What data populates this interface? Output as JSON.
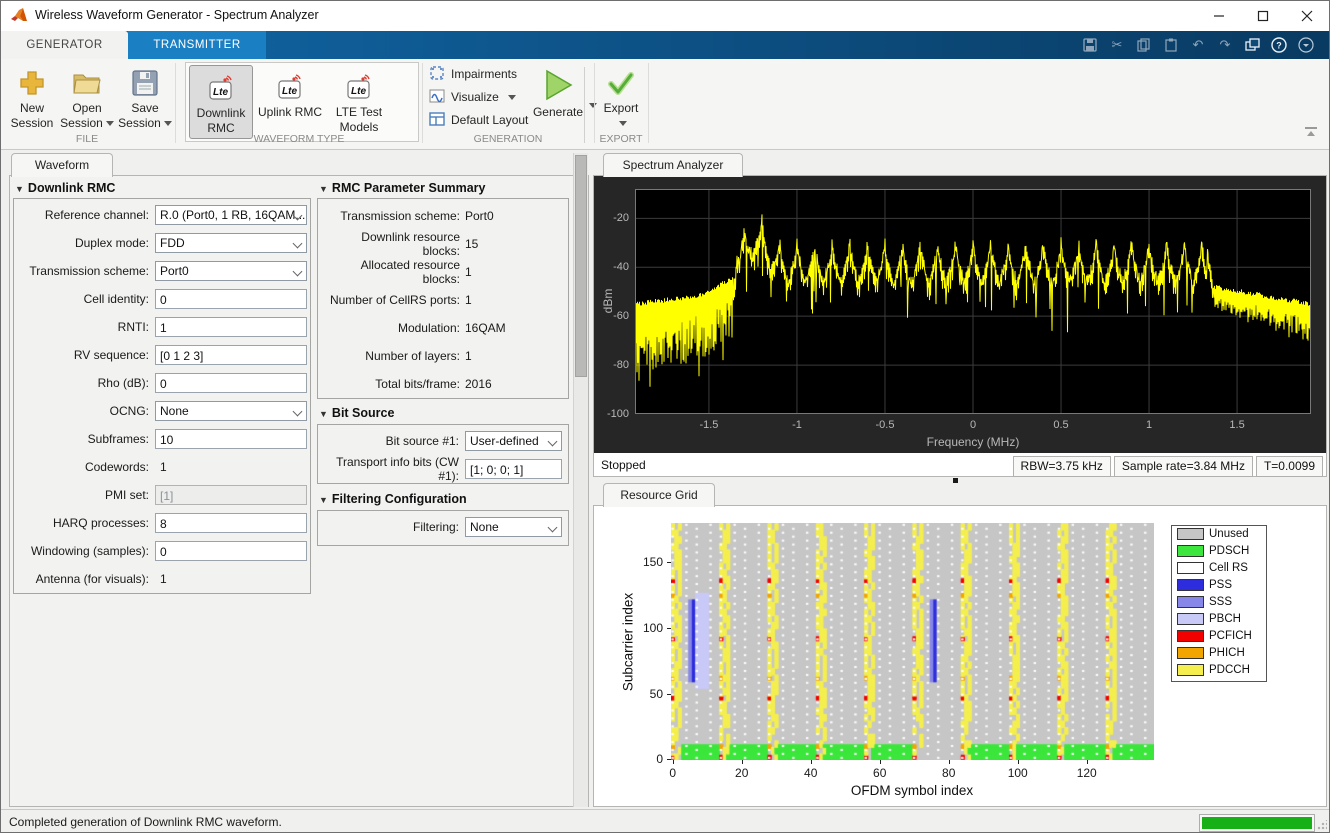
{
  "window": {
    "title": "Wireless Waveform Generator - Spectrum Analyzer"
  },
  "tabs": {
    "generator": "GENERATOR",
    "transmitter": "TRANSMITTER"
  },
  "ribbon": {
    "file": {
      "section": "FILE",
      "new1": "New",
      "new2": "Session",
      "open1": "Open",
      "open2": "Session",
      "save1": "Save",
      "save2": "Session"
    },
    "waveform_type": {
      "section": "WAVEFORM TYPE",
      "downlink1": "Downlink",
      "downlink2": "RMC",
      "uplink": "Uplink RMC",
      "lte1": "LTE Test",
      "lte2": "Models"
    },
    "generation": {
      "section": "GENERATION",
      "impairments": "Impairments",
      "visualize": "Visualize",
      "default_layout": "Default Layout",
      "generate": "Generate"
    },
    "export": {
      "section": "EXPORT",
      "label": "Export"
    }
  },
  "left_panel": {
    "tab": "Waveform",
    "downlink_rmc": {
      "title": "Downlink RMC",
      "rows": [
        {
          "label": "Reference channel:",
          "value": "R.0 (Port0, 1 RB, 16QAM...",
          "type": "combo"
        },
        {
          "label": "Duplex mode:",
          "value": "FDD",
          "type": "combo"
        },
        {
          "label": "Transmission scheme:",
          "value": "Port0",
          "type": "combo"
        },
        {
          "label": "Cell identity:",
          "value": "0",
          "type": "input"
        },
        {
          "label": "RNTI:",
          "value": "1",
          "type": "input"
        },
        {
          "label": "RV sequence:",
          "value": "[0 1 2 3]",
          "type": "input"
        },
        {
          "label": "Rho (dB):",
          "value": "0",
          "type": "input"
        },
        {
          "label": "OCNG:",
          "value": "None",
          "type": "combo"
        },
        {
          "label": "Subframes:",
          "value": "10",
          "type": "input"
        },
        {
          "label": "Codewords:",
          "value": "1",
          "type": "static"
        },
        {
          "label": "PMI set:",
          "value": "[1]",
          "type": "input_disabled"
        },
        {
          "label": "HARQ processes:",
          "value": "8",
          "type": "input"
        },
        {
          "label": "Windowing (samples):",
          "value": "0",
          "type": "input"
        },
        {
          "label": "Antenna (for visuals):",
          "value": "1",
          "type": "static"
        }
      ]
    },
    "rmc_summary": {
      "title": "RMC Parameter Summary",
      "rows": [
        {
          "label": "Transmission scheme:",
          "value": "Port0"
        },
        {
          "label": "Downlink resource blocks:",
          "value": "15"
        },
        {
          "label": "Allocated resource blocks:",
          "value": "1"
        },
        {
          "label": "Number of CellRS ports:",
          "value": "1"
        },
        {
          "label": "Modulation:",
          "value": "16QAM"
        },
        {
          "label": "Number of layers:",
          "value": "1"
        },
        {
          "label": "Total bits/frame:",
          "value": "2016"
        }
      ]
    },
    "bit_source": {
      "title": "Bit Source",
      "rows": [
        {
          "label": "Bit source #1:",
          "value": "User-defined",
          "type": "combo"
        },
        {
          "label": "Transport info bits (CW #1):",
          "value": "[1; 0; 0; 1]",
          "type": "input"
        }
      ]
    },
    "filtering": {
      "title": "Filtering Configuration",
      "rows": [
        {
          "label": "Filtering:",
          "value": "None",
          "type": "combo"
        }
      ]
    }
  },
  "spectrum_panel": {
    "tab": "Spectrum Analyzer",
    "status": "Stopped",
    "rbw": "RBW=3.75 kHz",
    "sample_rate": "Sample rate=3.84 MHz",
    "time": "T=0.0099"
  },
  "resource_panel": {
    "tab": "Resource Grid"
  },
  "statusbar": {
    "message": "Completed generation of Downlink RMC waveform."
  },
  "chart_data": {
    "spectrum": {
      "type": "line",
      "xlabel": "Frequency (MHz)",
      "ylabel": "dBm",
      "xlim": [
        -1.92,
        1.92
      ],
      "ylim": [
        -100,
        -8
      ],
      "xticks": [
        -1.5,
        -1,
        -0.5,
        0,
        0.5,
        1,
        1.5
      ],
      "yticks": [
        -20,
        -40,
        -60,
        -80,
        -100
      ],
      "grid": true,
      "trace_color": "#ffff00",
      "plot_bg": "#000000",
      "panel_bg": "#262626",
      "band_edge_mhz": 1.345,
      "peak_spacing_mhz": 0.1,
      "peak_level_dbm": -27.5,
      "valley_level_dbm": -45.5,
      "lump_center_mhz": -1.23,
      "lump_width_mhz": 0.09,
      "lump_gain_db": 11,
      "noise_floor_inner_dbm": -50,
      "noise_floor_outer_dbm": -56,
      "seed": 42,
      "points": 1352
    },
    "resource_grid": {
      "type": "heatmap",
      "xlabel": "OFDM symbol index",
      "ylabel": "Subcarrier index",
      "xticks": [
        0,
        20,
        40,
        60,
        80,
        100,
        120
      ],
      "yticks": [
        0,
        50,
        100,
        150
      ],
      "n_symbols": 140,
      "n_subcarriers": 180,
      "symbols_per_subframe": 14,
      "control_symbols": 3,
      "pdsch_rb_subcarriers": 12,
      "empty_subframe": 5,
      "pss": {
        "symbols": [
          6,
          76
        ],
        "sc_range": [
          59,
          121
        ]
      },
      "sss": {
        "symbols": [
          5,
          75
        ],
        "sc_range": [
          59,
          121
        ]
      },
      "pbch": {
        "symbol_range": [
          7,
          10
        ],
        "sc_range": [
          54,
          126
        ]
      },
      "pcfich_groups": [
        1,
        46,
        91,
        135
      ],
      "phich_groups": [
        9,
        61,
        124
      ],
      "seed": 7,
      "palette": {
        "unused": "#c6c6c6",
        "pdsch": "#3ce63c",
        "cellrs": "#ffffff",
        "pss": "#2d2ddd",
        "sss": "#8787ea",
        "pbch": "#c9c9f8",
        "pcfich": "#f20000",
        "phich": "#f2a500",
        "pdcch": "#f4ef4e"
      },
      "legend": [
        {
          "label": "Unused",
          "key": "unused"
        },
        {
          "label": "PDSCH",
          "key": "pdsch"
        },
        {
          "label": "Cell RS",
          "key": "cellrs"
        },
        {
          "label": "PSS",
          "key": "pss"
        },
        {
          "label": "SSS",
          "key": "sss"
        },
        {
          "label": "PBCH",
          "key": "pbch"
        },
        {
          "label": "PCFICH",
          "key": "pcfich"
        },
        {
          "label": "PHICH",
          "key": "phich"
        },
        {
          "label": "PDCCH",
          "key": "pdcch"
        }
      ]
    }
  }
}
